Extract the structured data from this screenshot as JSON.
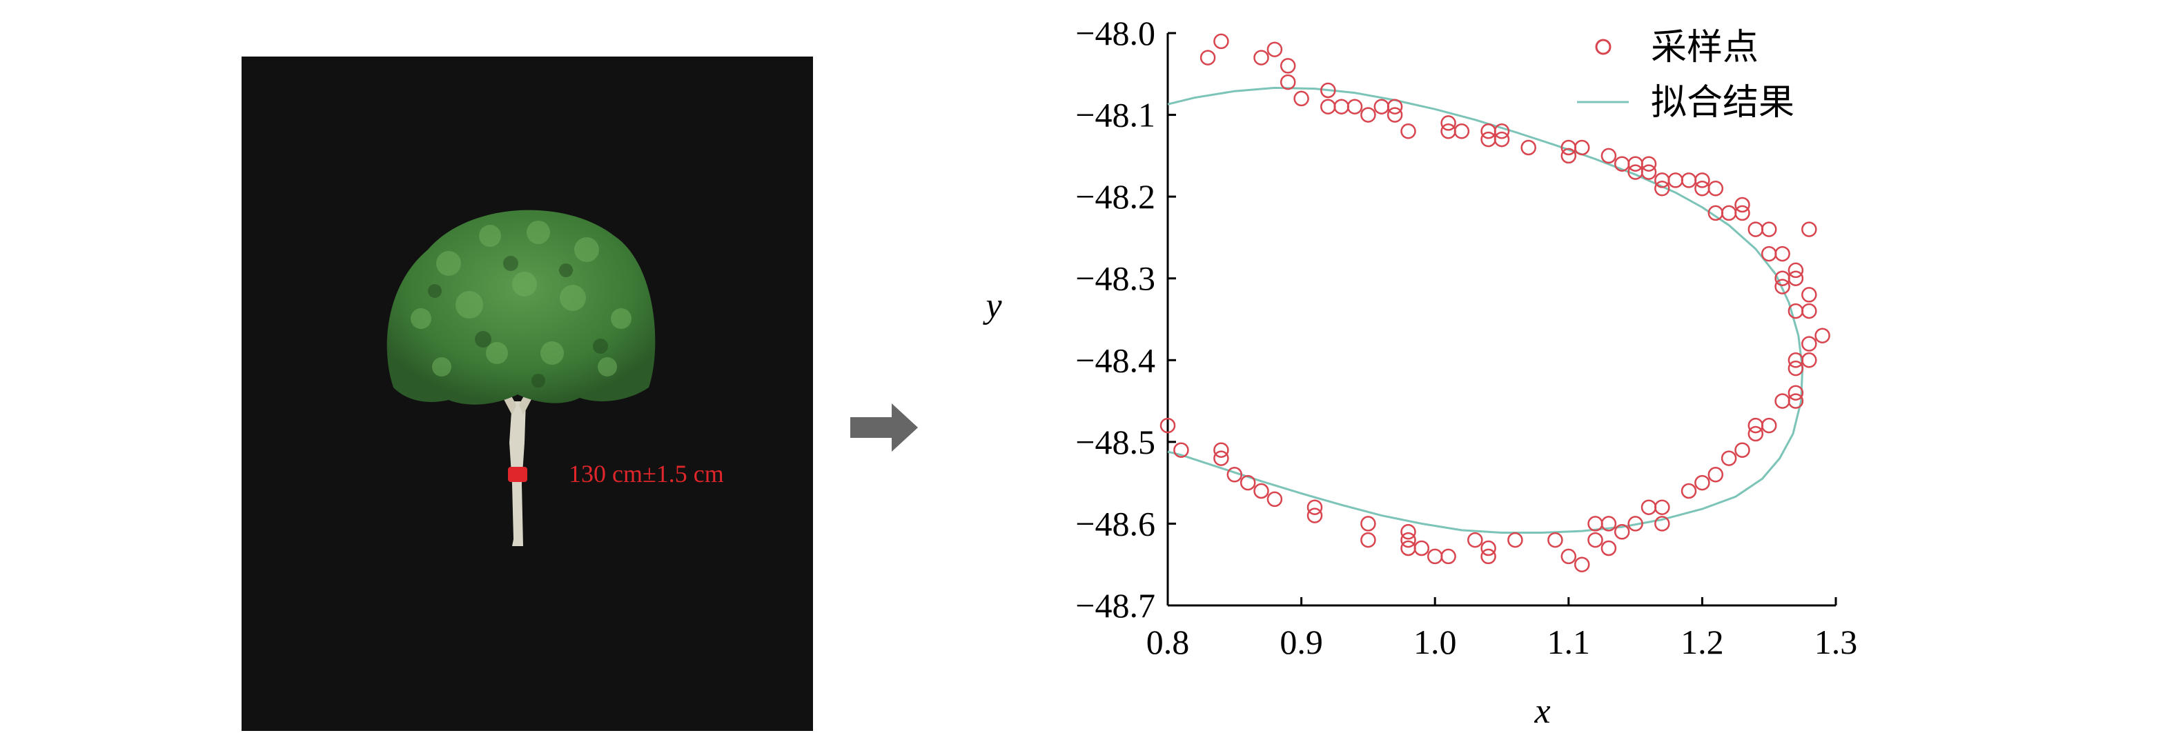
{
  "photo": {
    "annotation": "130 cm±1.5 cm",
    "annotation_color": "#e0262b",
    "background": "#111111",
    "foliage_color": "#3d7a36"
  },
  "chart_data": {
    "type": "scatter",
    "xlabel": "x",
    "ylabel": "y",
    "xlim": [
      0.8,
      1.3
    ],
    "ylim": [
      -48.7,
      -48.0
    ],
    "xticks": [
      "0.8",
      "0.9",
      "1.0",
      "1.1",
      "1.2",
      "1.3"
    ],
    "yticks": [
      "−48.0",
      "−48.1",
      "−48.2",
      "−48.3",
      "−48.4",
      "−48.5",
      "−48.6",
      "−48.7"
    ],
    "legend_position": "top-right",
    "grid": false,
    "series": [
      {
        "name": "采样点",
        "kind": "scatter",
        "marker": "open-circle",
        "color": "#d9454f",
        "points": [
          [
            0.8,
            -48.48
          ],
          [
            0.81,
            -48.51
          ],
          [
            0.83,
            -48.03
          ],
          [
            0.84,
            -48.01
          ],
          [
            0.84,
            -48.51
          ],
          [
            0.84,
            -48.52
          ],
          [
            0.85,
            -48.54
          ],
          [
            0.86,
            -48.55
          ],
          [
            0.87,
            -48.03
          ],
          [
            0.87,
            -48.56
          ],
          [
            0.88,
            -48.02
          ],
          [
            0.88,
            -48.57
          ],
          [
            0.89,
            -48.04
          ],
          [
            0.89,
            -48.06
          ],
          [
            0.9,
            -48.08
          ],
          [
            0.91,
            -48.58
          ],
          [
            0.91,
            -48.59
          ],
          [
            0.92,
            -48.07
          ],
          [
            0.92,
            -48.09
          ],
          [
            0.93,
            -48.09
          ],
          [
            0.94,
            -48.09
          ],
          [
            0.95,
            -48.1
          ],
          [
            0.95,
            -48.6
          ],
          [
            0.95,
            -48.62
          ],
          [
            0.96,
            -48.09
          ],
          [
            0.97,
            -48.09
          ],
          [
            0.97,
            -48.1
          ],
          [
            0.98,
            -48.12
          ],
          [
            0.98,
            -48.61
          ],
          [
            0.98,
            -48.62
          ],
          [
            0.98,
            -48.63
          ],
          [
            0.99,
            -48.63
          ],
          [
            1.0,
            -48.64
          ],
          [
            1.01,
            -48.64
          ],
          [
            1.01,
            -48.11
          ],
          [
            1.01,
            -48.12
          ],
          [
            1.02,
            -48.12
          ],
          [
            1.03,
            -48.62
          ],
          [
            1.04,
            -48.12
          ],
          [
            1.04,
            -48.13
          ],
          [
            1.04,
            -48.63
          ],
          [
            1.04,
            -48.64
          ],
          [
            1.05,
            -48.12
          ],
          [
            1.05,
            -48.13
          ],
          [
            1.06,
            -48.62
          ],
          [
            1.07,
            -48.14
          ],
          [
            1.09,
            -48.62
          ],
          [
            1.1,
            -48.64
          ],
          [
            1.1,
            -48.14
          ],
          [
            1.1,
            -48.15
          ],
          [
            1.11,
            -48.65
          ],
          [
            1.11,
            -48.14
          ],
          [
            1.12,
            -48.6
          ],
          [
            1.12,
            -48.62
          ],
          [
            1.13,
            -48.63
          ],
          [
            1.13,
            -48.6
          ],
          [
            1.13,
            -48.15
          ],
          [
            1.14,
            -48.16
          ],
          [
            1.14,
            -48.61
          ],
          [
            1.15,
            -48.16
          ],
          [
            1.15,
            -48.17
          ],
          [
            1.15,
            -48.6
          ],
          [
            1.16,
            -48.16
          ],
          [
            1.16,
            -48.17
          ],
          [
            1.16,
            -48.58
          ],
          [
            1.17,
            -48.18
          ],
          [
            1.17,
            -48.19
          ],
          [
            1.17,
            -48.58
          ],
          [
            1.17,
            -48.6
          ],
          [
            1.18,
            -48.18
          ],
          [
            1.19,
            -48.18
          ],
          [
            1.19,
            -48.56
          ],
          [
            1.2,
            -48.18
          ],
          [
            1.2,
            -48.19
          ],
          [
            1.2,
            -48.55
          ],
          [
            1.21,
            -48.19
          ],
          [
            1.21,
            -48.22
          ],
          [
            1.21,
            -48.54
          ],
          [
            1.22,
            -48.22
          ],
          [
            1.22,
            -48.52
          ],
          [
            1.23,
            -48.21
          ],
          [
            1.23,
            -48.22
          ],
          [
            1.23,
            -48.51
          ],
          [
            1.24,
            -48.24
          ],
          [
            1.24,
            -48.48
          ],
          [
            1.24,
            -48.49
          ],
          [
            1.25,
            -48.24
          ],
          [
            1.25,
            -48.27
          ],
          [
            1.25,
            -48.48
          ],
          [
            1.26,
            -48.27
          ],
          [
            1.26,
            -48.3
          ],
          [
            1.26,
            -48.31
          ],
          [
            1.26,
            -48.45
          ],
          [
            1.27,
            -48.29
          ],
          [
            1.27,
            -48.3
          ],
          [
            1.27,
            -48.34
          ],
          [
            1.27,
            -48.4
          ],
          [
            1.27,
            -48.41
          ],
          [
            1.27,
            -48.44
          ],
          [
            1.27,
            -48.45
          ],
          [
            1.28,
            -48.24
          ],
          [
            1.28,
            -48.32
          ],
          [
            1.28,
            -48.34
          ],
          [
            1.28,
            -48.38
          ],
          [
            1.28,
            -48.4
          ],
          [
            1.29,
            -48.37
          ]
        ]
      },
      {
        "name": "拟合结果",
        "kind": "line",
        "color": "#7cc4b8",
        "points": [
          [
            0.8,
            -48.087
          ],
          [
            0.82,
            -48.079
          ],
          [
            0.85,
            -48.071
          ],
          [
            0.88,
            -48.067
          ],
          [
            0.91,
            -48.068
          ],
          [
            0.94,
            -48.073
          ],
          [
            0.97,
            -48.082
          ],
          [
            1.0,
            -48.093
          ],
          [
            1.03,
            -48.106
          ],
          [
            1.06,
            -48.121
          ],
          [
            1.09,
            -48.137
          ],
          [
            1.12,
            -48.154
          ],
          [
            1.15,
            -48.173
          ],
          [
            1.18,
            -48.195
          ],
          [
            1.2,
            -48.213
          ],
          [
            1.22,
            -48.235
          ],
          [
            1.24,
            -48.264
          ],
          [
            1.255,
            -48.295
          ],
          [
            1.265,
            -48.33
          ],
          [
            1.272,
            -48.37
          ],
          [
            1.275,
            -48.41
          ],
          [
            1.274,
            -48.45
          ],
          [
            1.268,
            -48.49
          ],
          [
            1.258,
            -48.52
          ],
          [
            1.245,
            -48.545
          ],
          [
            1.225,
            -48.567
          ],
          [
            1.2,
            -48.582
          ],
          [
            1.17,
            -48.595
          ],
          [
            1.14,
            -48.604
          ],
          [
            1.11,
            -48.609
          ],
          [
            1.08,
            -48.611
          ],
          [
            1.05,
            -48.611
          ],
          [
            1.02,
            -48.608
          ],
          [
            0.99,
            -48.6
          ],
          [
            0.96,
            -48.59
          ],
          [
            0.93,
            -48.577
          ],
          [
            0.9,
            -48.563
          ],
          [
            0.87,
            -48.548
          ],
          [
            0.84,
            -48.532
          ],
          [
            0.81,
            -48.516
          ],
          [
            0.8,
            -48.512
          ]
        ]
      }
    ]
  }
}
